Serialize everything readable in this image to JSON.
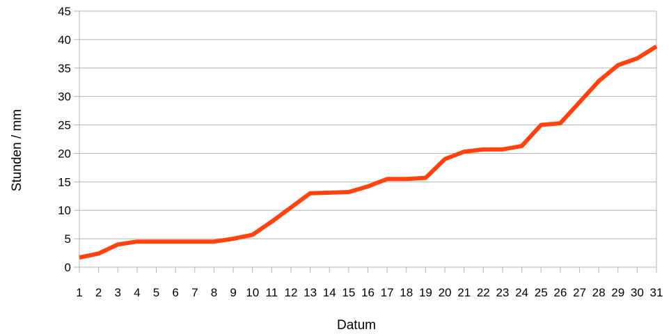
{
  "chart_data": {
    "type": "line",
    "title": "",
    "xlabel": "Datum",
    "ylabel": "Stunden / mm",
    "categories": [
      "1",
      "2",
      "3",
      "4",
      "5",
      "6",
      "7",
      "8",
      "9",
      "10",
      "11",
      "12",
      "13",
      "14",
      "15",
      "16",
      "17",
      "18",
      "19",
      "20",
      "21",
      "22",
      "23",
      "24",
      "25",
      "26",
      "27",
      "28",
      "29",
      "30",
      "31"
    ],
    "y_ticks": [
      "0",
      "5",
      "10",
      "15",
      "20",
      "25",
      "30",
      "35",
      "40",
      "45"
    ],
    "ylim": [
      0,
      45
    ],
    "grid": true,
    "legend": "none",
    "series": [
      {
        "color": "#ff420e",
        "values": [
          1.7,
          2.4,
          4.0,
          4.5,
          4.5,
          4.5,
          4.5,
          4.5,
          5.0,
          5.7,
          8.0,
          10.5,
          13.0,
          13.1,
          13.2,
          14.2,
          15.5,
          15.5,
          15.7,
          19.0,
          20.3,
          20.7,
          20.7,
          21.3,
          25.0,
          25.3,
          29.0,
          32.7,
          35.5,
          36.7,
          38.8
        ]
      }
    ]
  }
}
